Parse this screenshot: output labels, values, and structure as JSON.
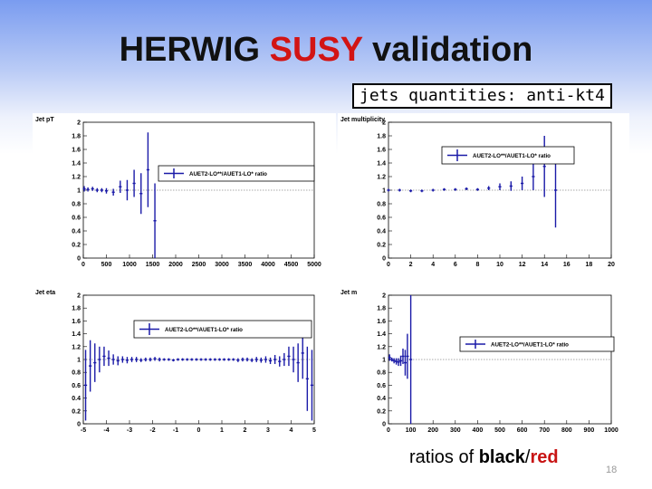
{
  "slide": {
    "title_part1": "HERWIG",
    "title_part2": "SUSY",
    "title_part3": "validation",
    "subtitle": "jets quantities: anti-kt4",
    "caption_prefix": "ratios of",
    "caption_black": "black",
    "caption_sep": "/",
    "caption_red": "red",
    "page_number": "18",
    "colors": {
      "accent_red": "#d21414",
      "series": "#1a1aa8",
      "reference_line": "#555555"
    }
  },
  "chart_data": [
    {
      "type": "scatter",
      "title": "Jet pT",
      "legend": "AUET2-LO**/AUET1-LO* ratio",
      "legend_position": "center",
      "xlim": [
        0,
        5000
      ],
      "ylim": [
        0,
        2
      ],
      "xticks": [
        0,
        500,
        1000,
        1500,
        2000,
        2500,
        3000,
        3500,
        4000,
        4500,
        5000
      ],
      "yticks": [
        0,
        0.2,
        0.4,
        0.6,
        0.8,
        1,
        1.2,
        1.4,
        1.6,
        1.8,
        2
      ],
      "reference_line": 1,
      "points": [
        [
          20,
          1.02,
          0.04
        ],
        [
          100,
          1.01,
          0.03
        ],
        [
          200,
          1.02,
          0.03
        ],
        [
          300,
          1.0,
          0.03
        ],
        [
          400,
          1.0,
          0.03
        ],
        [
          500,
          0.99,
          0.04
        ],
        [
          650,
          0.97,
          0.05
        ],
        [
          800,
          1.05,
          0.09
        ],
        [
          950,
          1.0,
          0.15
        ],
        [
          1100,
          1.1,
          0.2
        ],
        [
          1250,
          0.95,
          0.3
        ],
        [
          1400,
          1.3,
          0.55
        ],
        [
          1550,
          0.55,
          0.55
        ]
      ]
    },
    {
      "type": "scatter",
      "title": "Jet multiplicity",
      "legend": "AUET2-LO**/AUET1-LO* ratio",
      "legend_position": "top-right",
      "xlim": [
        0,
        20
      ],
      "ylim": [
        0,
        2
      ],
      "xticks": [
        0,
        2,
        4,
        6,
        8,
        10,
        12,
        14,
        16,
        18,
        20
      ],
      "yticks": [
        0,
        0.2,
        0.4,
        0.6,
        0.8,
        1,
        1.2,
        1.4,
        1.6,
        1.8,
        2
      ],
      "reference_line": 1,
      "points": [
        [
          0,
          1.0,
          0.02
        ],
        [
          1,
          1.0,
          0.02
        ],
        [
          2,
          0.99,
          0.02
        ],
        [
          3,
          0.99,
          0.02
        ],
        [
          4,
          1.0,
          0.02
        ],
        [
          5,
          1.01,
          0.02
        ],
        [
          6,
          1.01,
          0.02
        ],
        [
          7,
          1.02,
          0.02
        ],
        [
          8,
          1.01,
          0.02
        ],
        [
          9,
          1.03,
          0.03
        ],
        [
          10,
          1.05,
          0.05
        ],
        [
          11,
          1.06,
          0.07
        ],
        [
          12,
          1.1,
          0.1
        ],
        [
          13,
          1.2,
          0.2
        ],
        [
          14,
          1.35,
          0.45
        ],
        [
          15,
          1.0,
          0.55
        ]
      ]
    },
    {
      "type": "scatter",
      "title": "Jet eta",
      "legend": "AUET2-LO**/AUET1-LO* ratio",
      "legend_position": "top-right",
      "xlim": [
        -5,
        5
      ],
      "ylim": [
        0,
        2
      ],
      "xticks": [
        -5,
        -4,
        -3,
        -2,
        -1,
        0,
        1,
        2,
        3,
        4,
        5
      ],
      "yticks": [
        0,
        0.2,
        0.4,
        0.6,
        0.8,
        1,
        1.2,
        1.4,
        1.6,
        1.8,
        2
      ],
      "reference_line": 1,
      "points": [
        [
          -4.9,
          0.6,
          0.55
        ],
        [
          -4.7,
          0.9,
          0.4
        ],
        [
          -4.5,
          0.95,
          0.3
        ],
        [
          -4.3,
          1.0,
          0.2
        ],
        [
          -4.1,
          1.05,
          0.15
        ],
        [
          -3.9,
          1.02,
          0.12
        ],
        [
          -3.7,
          1.0,
          0.08
        ],
        [
          -3.5,
          0.98,
          0.07
        ],
        [
          -3.3,
          1.0,
          0.05
        ],
        [
          -3.1,
          0.99,
          0.05
        ],
        [
          -2.9,
          1.0,
          0.04
        ],
        [
          -2.7,
          1.0,
          0.04
        ],
        [
          -2.5,
          0.99,
          0.03
        ],
        [
          -2.3,
          1.0,
          0.03
        ],
        [
          -2.1,
          1.0,
          0.03
        ],
        [
          -1.9,
          1.01,
          0.03
        ],
        [
          -1.7,
          1.0,
          0.03
        ],
        [
          -1.5,
          1.0,
          0.02
        ],
        [
          -1.3,
          1.0,
          0.02
        ],
        [
          -1.1,
          0.99,
          0.02
        ],
        [
          -0.9,
          1.0,
          0.02
        ],
        [
          -0.7,
          1.0,
          0.02
        ],
        [
          -0.5,
          1.0,
          0.02
        ],
        [
          -0.3,
          1.0,
          0.02
        ],
        [
          -0.1,
          1.0,
          0.02
        ],
        [
          0.1,
          1.0,
          0.02
        ],
        [
          0.3,
          1.0,
          0.02
        ],
        [
          0.5,
          1.0,
          0.02
        ],
        [
          0.7,
          1.0,
          0.02
        ],
        [
          0.9,
          1.0,
          0.02
        ],
        [
          1.1,
          1.0,
          0.02
        ],
        [
          1.3,
          1.0,
          0.02
        ],
        [
          1.5,
          1.0,
          0.02
        ],
        [
          1.7,
          0.99,
          0.03
        ],
        [
          1.9,
          1.0,
          0.03
        ],
        [
          2.1,
          1.0,
          0.03
        ],
        [
          2.3,
          0.99,
          0.03
        ],
        [
          2.5,
          1.0,
          0.04
        ],
        [
          2.7,
          0.99,
          0.04
        ],
        [
          2.9,
          1.0,
          0.05
        ],
        [
          3.1,
          0.98,
          0.05
        ],
        [
          3.3,
          1.0,
          0.07
        ],
        [
          3.5,
          0.97,
          0.08
        ],
        [
          3.7,
          1.0,
          0.1
        ],
        [
          3.9,
          1.05,
          0.15
        ],
        [
          4.1,
          1.0,
          0.2
        ],
        [
          4.3,
          0.95,
          0.3
        ],
        [
          4.5,
          1.1,
          0.4
        ],
        [
          4.7,
          0.7,
          0.5
        ],
        [
          4.9,
          0.6,
          0.55
        ]
      ]
    },
    {
      "type": "scatter",
      "title": "Jet m",
      "legend": "AUET2-LO**/AUET1-LO* ratio",
      "legend_position": "center-right",
      "xlim": [
        0,
        1000
      ],
      "ylim": [
        0,
        2
      ],
      "xticks": [
        0,
        100,
        200,
        300,
        400,
        500,
        600,
        700,
        800,
        900,
        1000
      ],
      "yticks": [
        0,
        0.2,
        0.4,
        0.6,
        0.8,
        1,
        1.2,
        1.4,
        1.6,
        1.8,
        2
      ],
      "reference_line": 1,
      "points": [
        [
          5,
          1.03,
          0.05
        ],
        [
          15,
          1.0,
          0.03
        ],
        [
          25,
          0.98,
          0.04
        ],
        [
          35,
          0.97,
          0.05
        ],
        [
          45,
          0.96,
          0.06
        ],
        [
          55,
          0.98,
          0.08
        ],
        [
          65,
          1.05,
          0.12
        ],
        [
          75,
          0.95,
          0.2
        ],
        [
          85,
          1.05,
          0.35
        ],
        [
          100,
          1.0,
          1.0
        ]
      ]
    }
  ]
}
